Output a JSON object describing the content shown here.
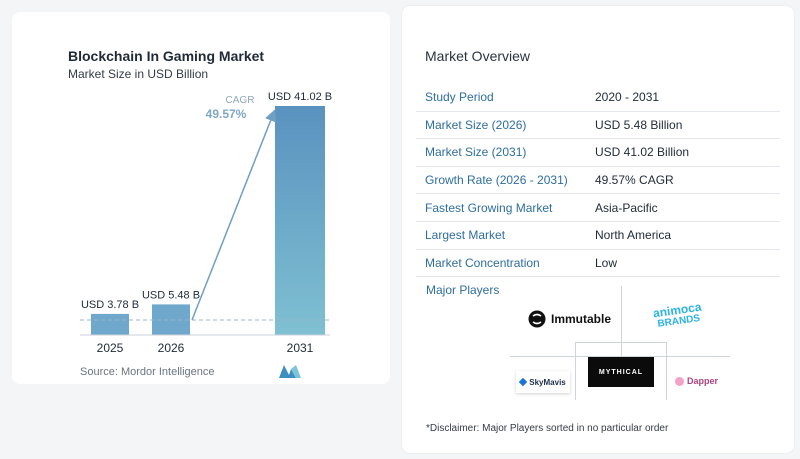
{
  "chart_data": {
    "type": "bar",
    "title": "Blockchain In Gaming Market",
    "subtitle": "Market Size in USD Billion",
    "categories": [
      "2025",
      "2026",
      "2031"
    ],
    "values": [
      3.78,
      5.48,
      41.02
    ],
    "data_labels": [
      "USD 3.78 B",
      "USD 5.48 B",
      "USD 41.02 B"
    ],
    "cagr_label": "CAGR",
    "cagr_value": "49.57%",
    "ylim": [
      0,
      41.02
    ],
    "grid": false
  },
  "source": "Source:  Mordor Intelligence",
  "overview": {
    "title": "Market Overview",
    "rows": [
      {
        "key": "Study Period",
        "value": "2020 - 2031"
      },
      {
        "key": "Market Size (2026)",
        "value": "USD 5.48 Billion"
      },
      {
        "key": "Market Size (2031)",
        "value": "USD 41.02 Billion"
      },
      {
        "key": "Growth Rate (2026 - 2031)",
        "value": "49.57% CAGR"
      },
      {
        "key": "Fastest Growing Market",
        "value": "Asia-Pacific"
      },
      {
        "key": "Largest Market",
        "value": "North America"
      },
      {
        "key": "Market Concentration",
        "value": "Low"
      }
    ]
  },
  "players": {
    "title": "Major Players",
    "immutable": "Immutable",
    "animoca_top": "animoca",
    "animoca_bottom": "BRANDS",
    "skymavis": "SkyMavis",
    "mythical": "MYTHICAL",
    "dapper": "Dapper"
  },
  "disclaimer": "*Disclaimer: Major Players sorted in no particular order",
  "colors": {
    "bar_light": "#6fa8cc",
    "bar_dark": "#4f86b3",
    "accent": "#2e6e9e",
    "cagr": "#7fa7c4"
  }
}
